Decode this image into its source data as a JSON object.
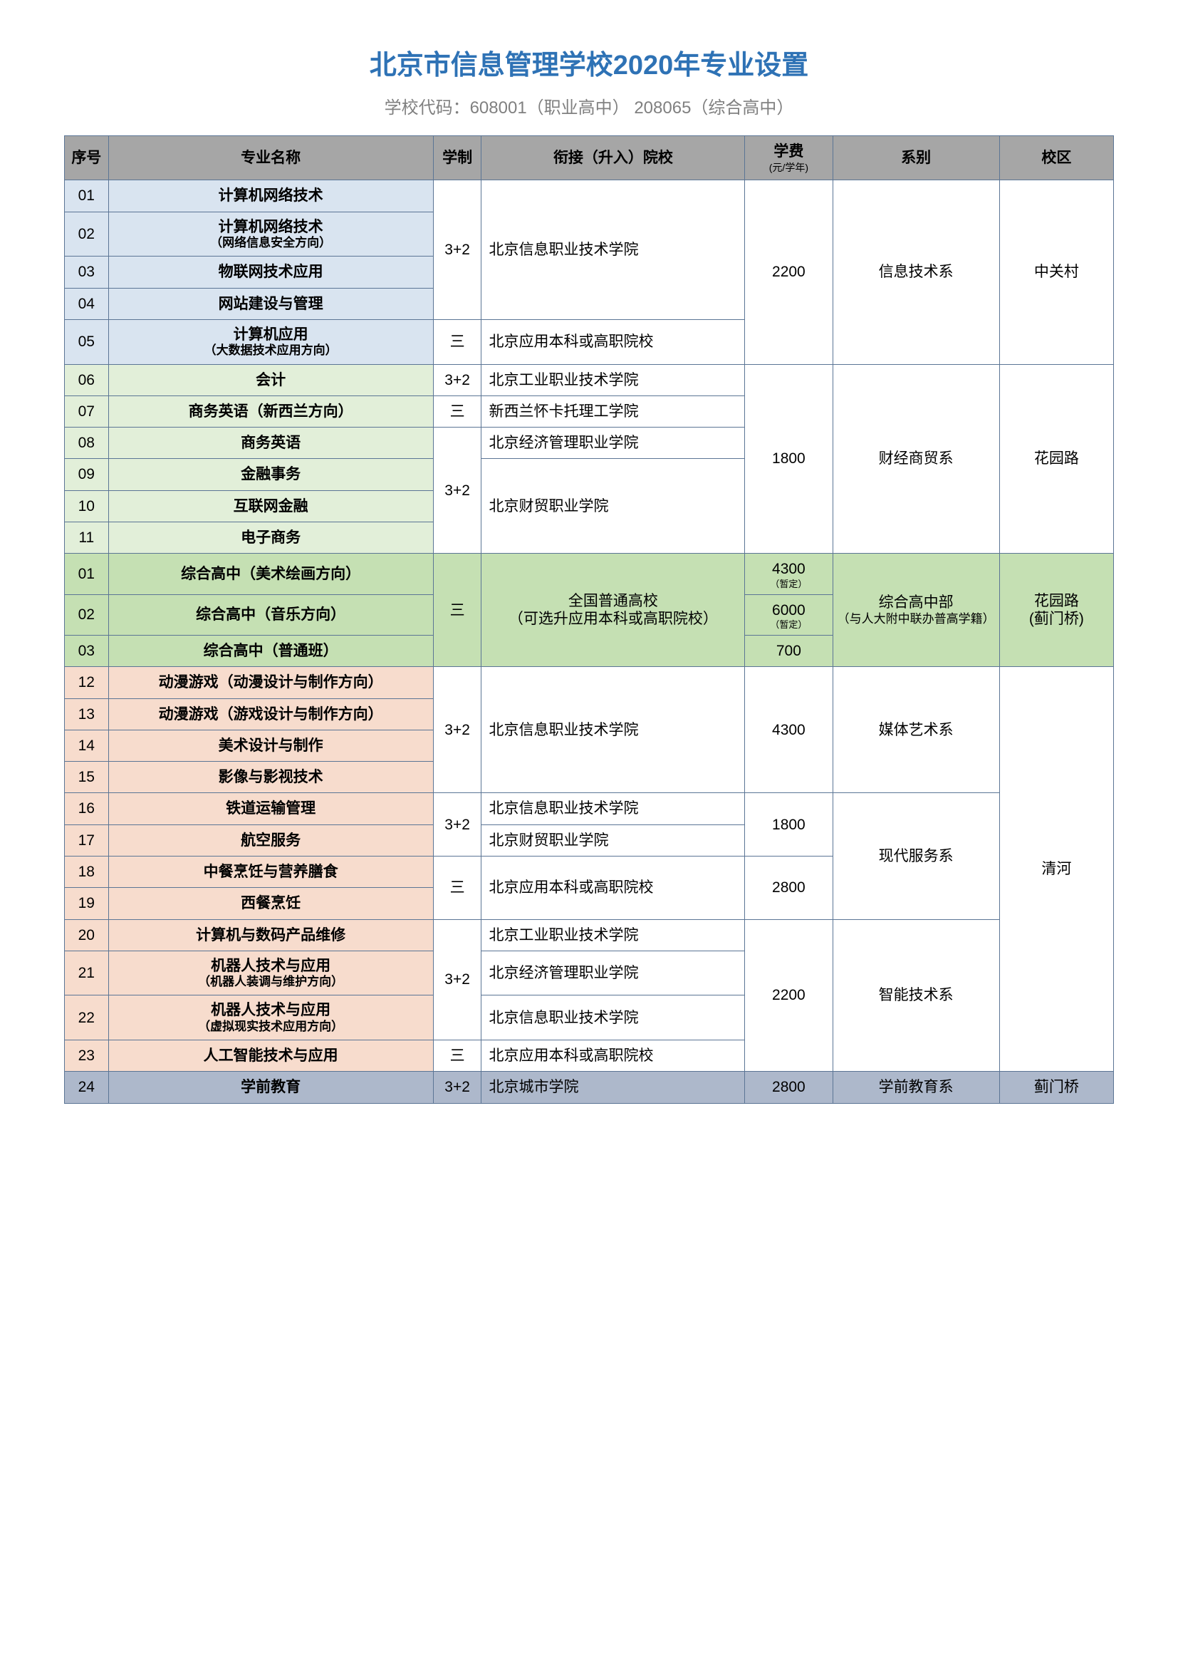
{
  "title": "北京市信息管理学校2020年专业设置",
  "subtitle": "学校代码：608001（职业高中）  208065（综合高中）",
  "headers": {
    "no": "序号",
    "major": "专业名称",
    "system": "学制",
    "school": "衔接（升入）院校",
    "fee": "学费",
    "fee_sub": "(元/学年)",
    "dept": "系别",
    "campus": "校区"
  },
  "colors": {
    "title": "#2e72b5",
    "subtitle": "#808080",
    "border": "#5b7595",
    "header_bg": "#a6a6a6",
    "blue": "#d9e4f0",
    "green1": "#e2efd9",
    "green2": "#c5e0b3",
    "peach": "#f7dccd",
    "bluegray": "#adb8cb"
  },
  "r": {
    "01": {
      "no": "01",
      "major": "计算机网络技术"
    },
    "02": {
      "no": "02",
      "major": "计算机网络技术",
      "sub": "（网络信息安全方向）"
    },
    "03": {
      "no": "03",
      "major": "物联网技术应用"
    },
    "04": {
      "no": "04",
      "major": "网站建设与管理"
    },
    "05": {
      "no": "05",
      "major": "计算机应用",
      "sub": "（大数据技术应用方向）"
    },
    "06": {
      "no": "06",
      "major": "会计"
    },
    "07": {
      "no": "07",
      "major": "商务英语（新西兰方向）"
    },
    "08": {
      "no": "08",
      "major": "商务英语"
    },
    "09": {
      "no": "09",
      "major": "金融事务"
    },
    "10": {
      "no": "10",
      "major": "互联网金融"
    },
    "11": {
      "no": "11",
      "major": "电子商务"
    },
    "g01": {
      "no": "01",
      "major": "综合高中（美术绘画方向）"
    },
    "g02": {
      "no": "02",
      "major": "综合高中（音乐方向）"
    },
    "g03": {
      "no": "03",
      "major": "综合高中（普通班）"
    },
    "12": {
      "no": "12",
      "major": "动漫游戏（动漫设计与制作方向）"
    },
    "13": {
      "no": "13",
      "major": "动漫游戏（游戏设计与制作方向）"
    },
    "14": {
      "no": "14",
      "major": "美术设计与制作"
    },
    "15": {
      "no": "15",
      "major": "影像与影视技术"
    },
    "16": {
      "no": "16",
      "major": "铁道运输管理"
    },
    "17": {
      "no": "17",
      "major": "航空服务"
    },
    "18": {
      "no": "18",
      "major": "中餐烹饪与营养膳食"
    },
    "19": {
      "no": "19",
      "major": "西餐烹饪"
    },
    "20": {
      "no": "20",
      "major": "计算机与数码产品维修"
    },
    "21": {
      "no": "21",
      "major": "机器人技术与应用",
      "sub": "（机器人装调与维护方向）"
    },
    "22": {
      "no": "22",
      "major": "机器人技术与应用",
      "sub": "（虚拟现实技术应用方向）"
    },
    "23": {
      "no": "23",
      "major": "人工智能技术与应用"
    },
    "24": {
      "no": "24",
      "major": "学前教育"
    }
  },
  "sys": {
    "a": "3+2",
    "b": "三"
  },
  "schools": {
    "bjxx": "北京信息职业技术学院",
    "bjapp": "北京应用本科或高职院校",
    "bjgy": "北京工业职业技术学院",
    "nz": "新西兰怀卡托理工学院",
    "bjjj": "北京经济管理职业学院",
    "bjcm": "北京财贸职业学院",
    "national": "全国普通高校",
    "national_sub": "（可选升应用本科或高职院校）",
    "bjcity": "北京城市学院"
  },
  "fees": {
    "2200": "2200",
    "1800": "1800",
    "4300": "4300",
    "4300p": "（暂定）",
    "6000": "6000",
    "6000p": "（暂定）",
    "700": "700",
    "2800": "2800"
  },
  "depts": {
    "it": "信息技术系",
    "fin": "财经商贸系",
    "comp": "综合高中部",
    "comp_sub": "（与人大附中联办普高学籍）",
    "media": "媒体艺术系",
    "service": "现代服务系",
    "smart": "智能技术系",
    "pre": "学前教育系"
  },
  "campus": {
    "zgc": "中关村",
    "hyl": "花园路",
    "hyl2": "花园路",
    "hyl2_sub": "(蓟门桥)",
    "qh": "清河",
    "jmq": "蓟门桥"
  }
}
